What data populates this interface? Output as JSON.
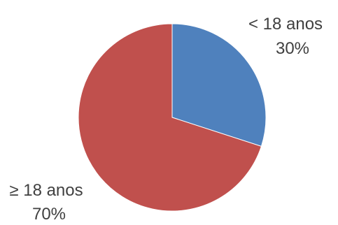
{
  "chart_data": {
    "type": "pie",
    "start_angle_deg": 0,
    "direction": "clockwise",
    "slices": [
      {
        "label": "< 18 anos",
        "value": 30,
        "value_label": "30%",
        "color": "#4F81BD"
      },
      {
        "label": "≥ 18 anos",
        "value": 70,
        "value_label": "70%",
        "color": "#C0504D"
      }
    ]
  }
}
